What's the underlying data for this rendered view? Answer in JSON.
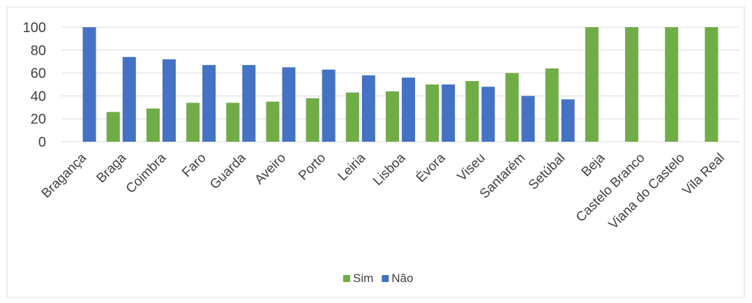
{
  "chart_data": {
    "type": "bar",
    "categories": [
      "Bragança",
      "Braga",
      "Coimbra",
      "Faro",
      "Guarda",
      "Aveiro",
      "Porto",
      "Leiria",
      "Lisboa",
      "Évora",
      "Viseu",
      "Santarém",
      "Setúbal",
      "Beja",
      "Castelo Branco",
      "Viana do Castelo",
      "Vila Real"
    ],
    "series": [
      {
        "name": "Sim",
        "color": "#70ad47",
        "values": [
          0,
          26,
          29,
          34,
          34,
          35,
          38,
          43,
          44,
          50,
          53,
          60,
          64,
          100,
          100,
          100,
          100
        ]
      },
      {
        "name": "Não",
        "color": "#4472c4",
        "values": [
          100,
          74,
          72,
          67,
          67,
          65,
          63,
          58,
          56,
          50,
          48,
          40,
          37,
          0,
          0,
          0,
          0
        ]
      }
    ],
    "ylim": [
      0,
      100
    ],
    "yticks": [
      0,
      20,
      40,
      60,
      80,
      100
    ],
    "grid": true,
    "legend": "bottom"
  }
}
